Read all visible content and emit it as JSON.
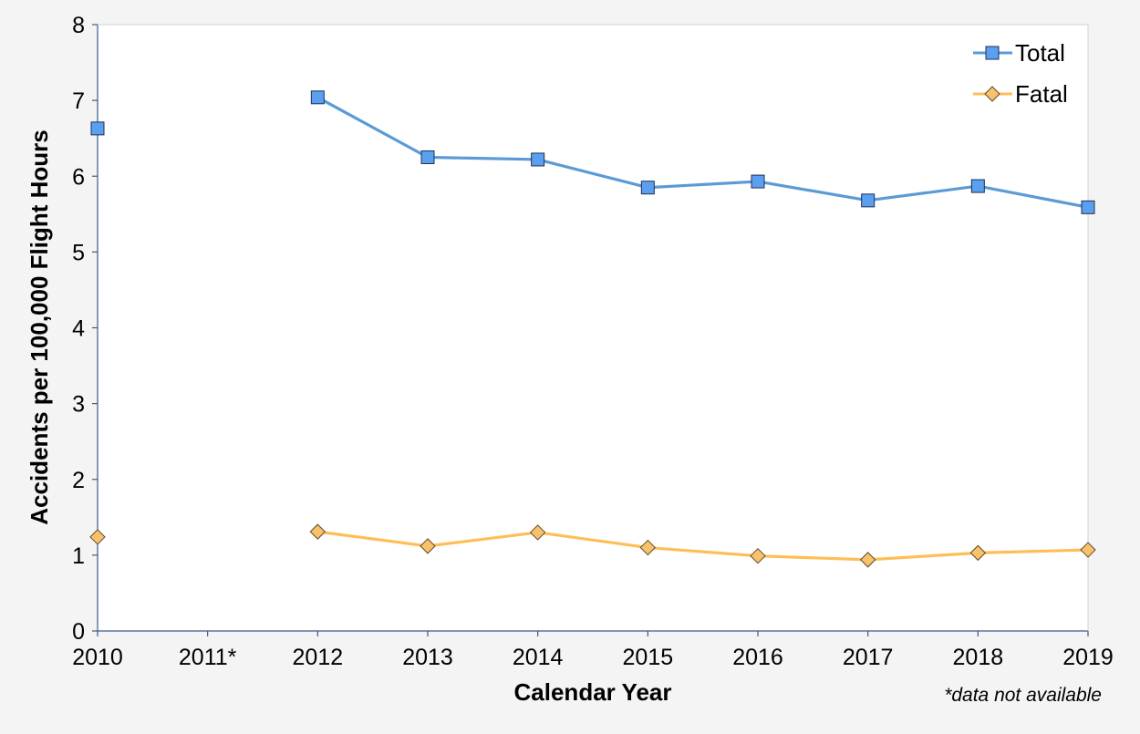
{
  "chart_data": {
    "type": "line",
    "title": "",
    "xlabel": "Calendar Year",
    "ylabel": "Accidents per 100,000 Flight Hours",
    "categories": [
      "2010",
      "2011*",
      "2012",
      "2013",
      "2014",
      "2015",
      "2016",
      "2017",
      "2018",
      "2019"
    ],
    "ylim": [
      0,
      8
    ],
    "yticks": [
      "0",
      "1",
      "2",
      "3",
      "4",
      "5",
      "6",
      "7",
      "8"
    ],
    "grid": false,
    "legend_position": "top-right",
    "footnote": "*data not available",
    "series": [
      {
        "name": "Total",
        "color": "#5b9bd5",
        "marker_fill": "#5b9ff0",
        "marker": "square",
        "values": [
          6.63,
          null,
          7.04,
          6.25,
          6.22,
          5.85,
          5.93,
          5.68,
          5.87,
          5.59
        ]
      },
      {
        "name": "Fatal",
        "color": "#ffbe55",
        "marker_fill": "#f9c26a",
        "marker": "diamond",
        "values": [
          1.24,
          null,
          1.31,
          1.12,
          1.3,
          1.1,
          0.99,
          0.94,
          1.03,
          1.07
        ]
      }
    ]
  }
}
